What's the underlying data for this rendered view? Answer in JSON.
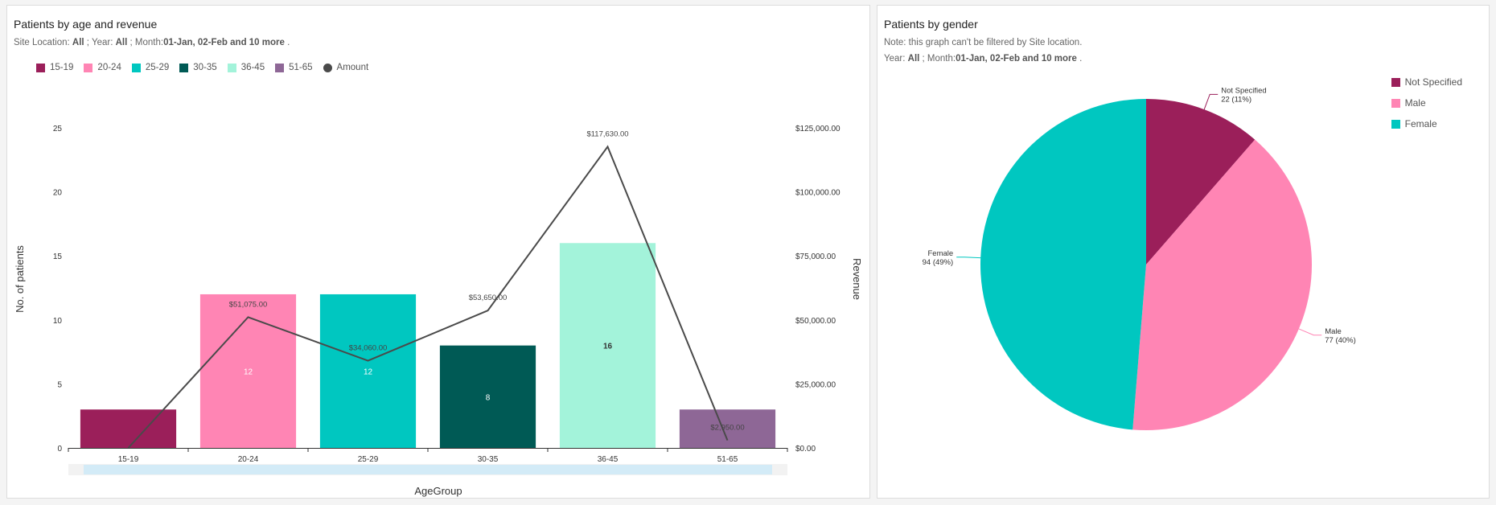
{
  "left_panel": {
    "title": "Patients by age and revenue",
    "filter": {
      "site_label": "Site Location: ",
      "site_value": "All",
      "year_label": " ; Year: ",
      "year_value": "All",
      "month_label": " ; Month:",
      "month_value": "01-Jan, 02-Feb and 10 more",
      "end": " ."
    }
  },
  "right_panel": {
    "title": "Patients by gender",
    "note": "Note: this graph can't be filtered by Site location.",
    "filter": {
      "year_label": "Year: ",
      "year_value": "All",
      "month_label": " ; Month:",
      "month_value": "01-Jan, 02-Feb and 10 more",
      "end": " ."
    }
  },
  "chart_data": [
    {
      "type": "bar",
      "xlabel": "AgeGroup",
      "ylabel": "No. of patients",
      "y2label": "Revenue",
      "categories": [
        "15-19",
        "20-24",
        "25-29",
        "30-35",
        "36-45",
        "51-65"
      ],
      "colors": [
        "#9b1f5a",
        "#ff85b4",
        "#00c7c0",
        "#005a55",
        "#a3f3da",
        "#8e6796"
      ],
      "series": [
        {
          "name": "Patients",
          "values": [
            3,
            12,
            12,
            8,
            16,
            3
          ]
        },
        {
          "name": "Amount",
          "type": "line",
          "color": "#4a4a4a",
          "values": [
            0,
            51075,
            34060,
            53650,
            117630,
            2950
          ]
        }
      ],
      "bar_labels": [
        "",
        "12",
        "12",
        "8",
        "16",
        ""
      ],
      "line_labels": [
        "",
        "$51,075.00",
        "$34,060.00",
        "$53,650.00",
        "$117,630.00",
        "$2,950.00"
      ],
      "legend": [
        "15-19",
        "20-24",
        "25-29",
        "30-35",
        "36-45",
        "51-65",
        "Amount"
      ],
      "ylim": [
        0,
        25
      ],
      "yticks": [
        "0",
        "5",
        "10",
        "15",
        "20",
        "25"
      ],
      "y2lim": [
        0,
        125000
      ],
      "y2ticks": [
        "$0.00",
        "$25,000.00",
        "$50,000.00",
        "$75,000.00",
        "$100,000.00",
        "$125,000.00"
      ]
    },
    {
      "type": "pie",
      "labels": [
        "Not Specified",
        "Male",
        "Female"
      ],
      "values": [
        22,
        77,
        94
      ],
      "percent_labels": [
        "22 (11%)",
        "77 (40%)",
        "94 (49%)"
      ],
      "colors": [
        "#9b1f5a",
        "#ff85b4",
        "#00c7c0"
      ],
      "legend_position": "top-right"
    }
  ]
}
